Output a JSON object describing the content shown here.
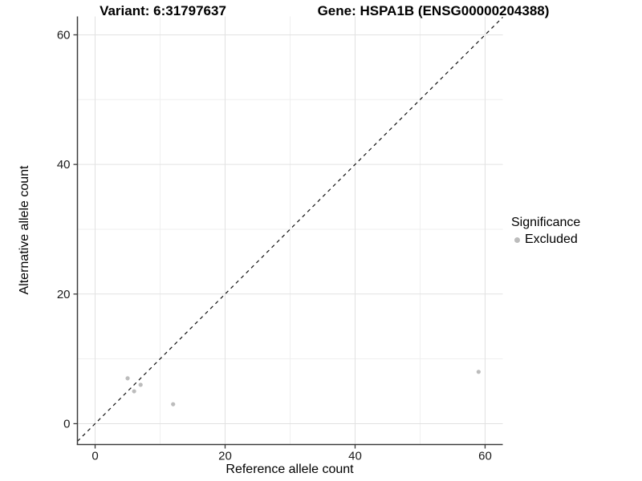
{
  "titles": {
    "left": "Variant: 6:31797637",
    "right": "Gene: HSPA1B (ENSG00000204388)"
  },
  "chart_data": {
    "type": "scatter",
    "title_left": "Variant: 6:31797637",
    "title_right": "Gene: HSPA1B (ENSG00000204388)",
    "xlabel": "Reference allele count",
    "ylabel": "Alternative allele count",
    "xlim": [
      -2.72,
      62.72
    ],
    "ylim": [
      -3.22,
      62.84
    ],
    "xticks": [
      0,
      20,
      40,
      60
    ],
    "yticks": [
      0,
      20,
      40,
      60
    ],
    "xticks_minor": [
      10,
      30,
      50
    ],
    "yticks_minor": [
      10,
      30,
      50
    ],
    "grid": true,
    "reference_line": {
      "type": "identity",
      "style": "dashed",
      "color": "#111111"
    },
    "series": [
      {
        "name": "Excluded",
        "color": "#bcbcbc",
        "points": [
          {
            "x": 5,
            "y": 7
          },
          {
            "x": 6,
            "y": 5
          },
          {
            "x": 7,
            "y": 6
          },
          {
            "x": 12,
            "y": 3
          },
          {
            "x": 59,
            "y": 8
          }
        ]
      }
    ],
    "legend": {
      "title": "Significance",
      "position": "right",
      "entries": [
        {
          "label": "Excluded",
          "color": "#bcbcbc"
        }
      ]
    },
    "colors": {
      "grid_major": "#e2e2e2",
      "grid_minor": "#efefef",
      "axis_line": "#3a3a3a",
      "tick_label": "#1a1a1a",
      "point": "#bcbcbc"
    }
  }
}
